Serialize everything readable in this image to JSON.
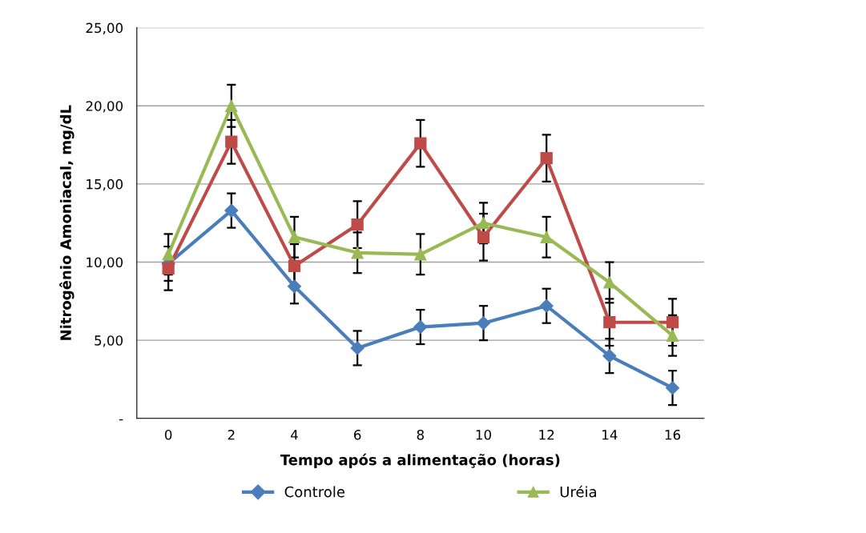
{
  "chart_data": {
    "type": "line",
    "xlabel": "Tempo após a alimentação (horas)",
    "ylabel": "Nitrogênio Amoniacal, mg/dL",
    "categories": [
      "0",
      "2",
      "4",
      "6",
      "8",
      "10",
      "12",
      "14",
      "16"
    ],
    "ylim": [
      0,
      25
    ],
    "yticks": [
      {
        "value": 0,
        "label": "-"
      },
      {
        "value": 5,
        "label": "5,00"
      },
      {
        "value": 10,
        "label": "10,00"
      },
      {
        "value": 15,
        "label": "15,00"
      },
      {
        "value": 20,
        "label": "20,00"
      },
      {
        "value": 25,
        "label": "25,00"
      }
    ],
    "grid": "y",
    "legend": "bottom",
    "series": [
      {
        "name": "Controle",
        "color": "#4a7ebb",
        "marker": "diamond",
        "values": [
          9.9,
          13.3,
          8.45,
          4.5,
          5.85,
          6.1,
          7.2,
          4.0,
          1.95
        ],
        "errors": [
          1.1,
          1.1,
          1.1,
          1.1,
          1.1,
          1.1,
          1.1,
          1.1,
          1.1
        ]
      },
      {
        "color": "#be4b48",
        "marker": "square",
        "values": [
          9.6,
          17.7,
          9.75,
          12.4,
          17.6,
          11.6,
          16.65,
          6.15,
          6.15
        ],
        "errors": [
          1.4,
          1.4,
          1.4,
          1.5,
          1.5,
          1.5,
          1.5,
          1.5,
          1.5
        ]
      },
      {
        "name": "Uréia",
        "color": "#98b954",
        "marker": "triangle",
        "values": [
          10.5,
          20.0,
          11.6,
          10.6,
          10.5,
          12.5,
          11.6,
          8.7,
          5.3
        ],
        "errors": [
          1.3,
          1.35,
          1.3,
          1.3,
          1.3,
          1.3,
          1.3,
          1.3,
          1.3
        ]
      }
    ]
  }
}
